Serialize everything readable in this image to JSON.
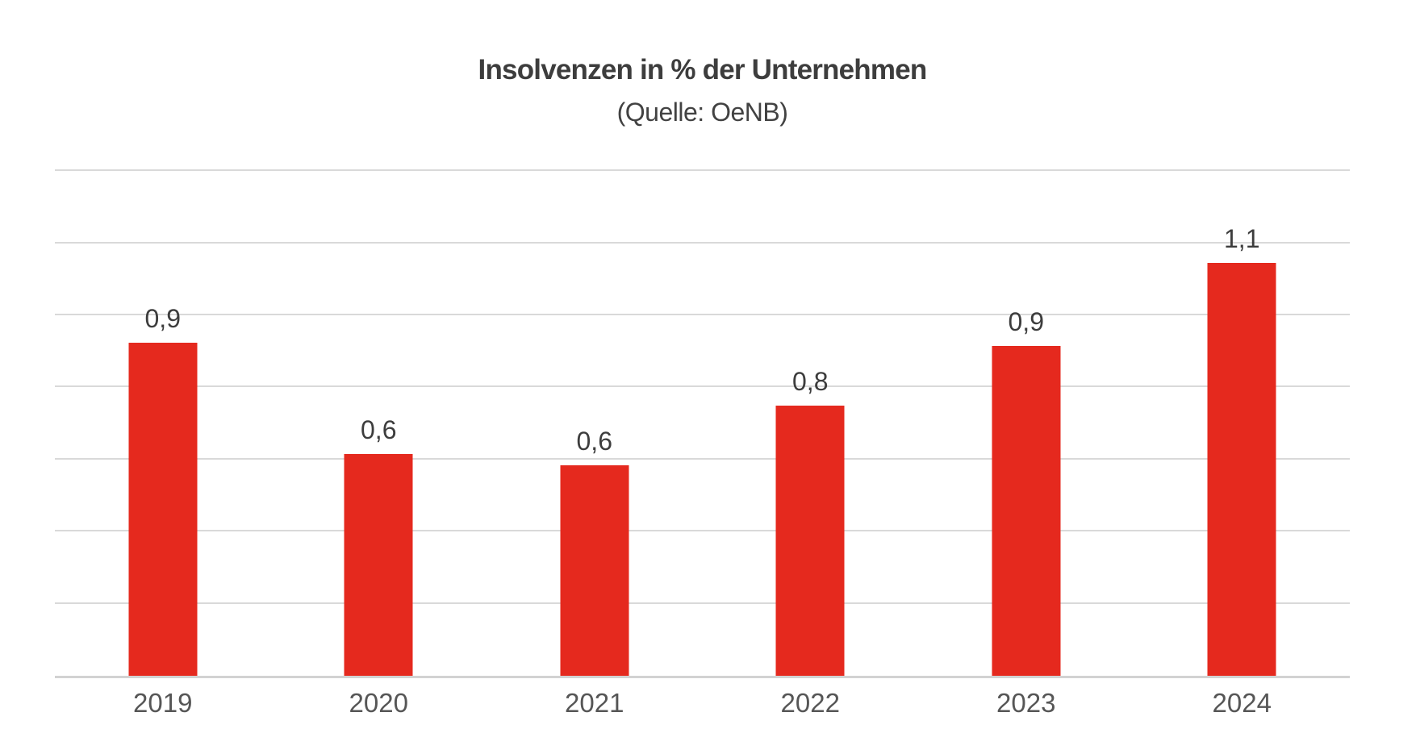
{
  "chart_data": {
    "type": "bar",
    "title": "Insolvenzen in % der Unternehmen",
    "subtitle": "(Quelle: OeNB)",
    "categories": [
      "2019",
      "2020",
      "2021",
      "2022",
      "2023",
      "2024"
    ],
    "values": [
      0.9,
      0.6,
      0.6,
      0.8,
      0.9,
      1.1
    ],
    "value_labels": [
      "0,9",
      "0,6",
      "0,6",
      "0,8",
      "0,9",
      "1,1"
    ],
    "bar_heights_precise": [
      0.925,
      0.615,
      0.585,
      0.75,
      0.915,
      1.145
    ],
    "xlabel": "",
    "ylabel": "",
    "ylim": [
      0,
      1.45
    ],
    "gridline_step": 0.2,
    "grid": true,
    "y_axis_tick_labels_visible": false,
    "legend_position": "none",
    "number_format": "decimal-comma",
    "colors": {
      "bar": "#e5291e",
      "gridline": "#d9d9d9",
      "axis_line": "#d2d2d2",
      "title_text": "#3d3d3d",
      "value_label_text": "#3d3d3d",
      "tick_label_text": "#565656",
      "background": "#ffffff"
    }
  }
}
